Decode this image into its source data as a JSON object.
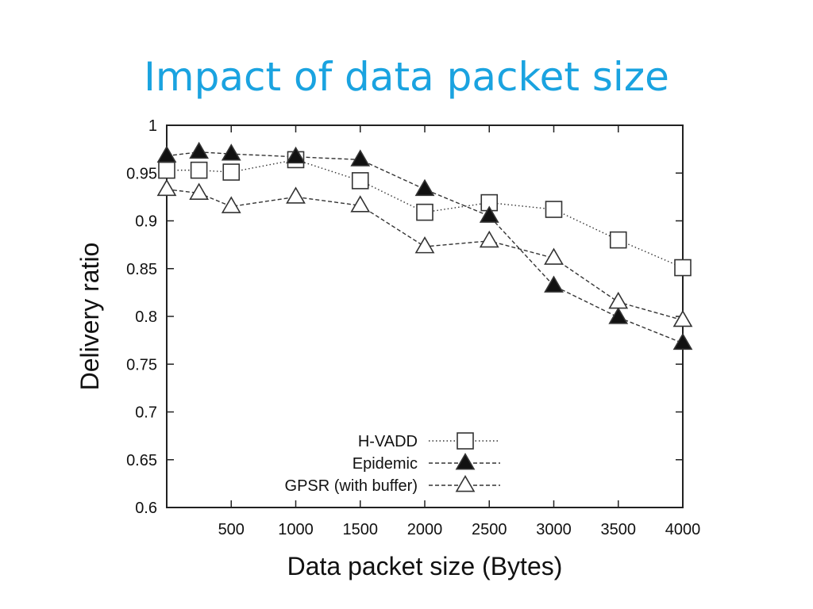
{
  "slide": {
    "title": "Impact of data packet size"
  },
  "chart_data": {
    "type": "line",
    "title": "",
    "xlabel": "Data packet size (Bytes)",
    "ylabel": "Delivery ratio",
    "xlim": [
      0,
      4000
    ],
    "ylim": [
      0.6,
      1
    ],
    "xticks": [
      500,
      1000,
      1500,
      2000,
      2500,
      3000,
      3500,
      4000
    ],
    "yticks": [
      0.6,
      0.65,
      0.7,
      0.75,
      0.8,
      0.85,
      0.9,
      0.95,
      1
    ],
    "ytick_labels": [
      "0.6",
      "0.65",
      "0.7",
      "0.75",
      "0.8",
      "0.85",
      "0.9",
      "0.95",
      "1"
    ],
    "grid": false,
    "legend_position": "bottom-center",
    "series": [
      {
        "name": "H-VADD",
        "marker": "open-square",
        "line": "dotted",
        "x": [
          0,
          250,
          500,
          1000,
          1500,
          2000,
          2500,
          3000,
          3500,
          4000
        ],
        "y": [
          0.953,
          0.953,
          0.951,
          0.964,
          0.942,
          0.909,
          0.919,
          0.912,
          0.88,
          0.851
        ]
      },
      {
        "name": "Epidemic",
        "marker": "filled-triangle",
        "line": "dashed",
        "x": [
          0,
          250,
          500,
          1000,
          1500,
          2000,
          2500,
          3000,
          3500,
          4000
        ],
        "y": [
          0.968,
          0.972,
          0.97,
          0.967,
          0.964,
          0.933,
          0.905,
          0.832,
          0.799,
          0.772
        ]
      },
      {
        "name": "GPSR (with buffer)",
        "marker": "open-triangle",
        "line": "dashed",
        "x": [
          0,
          250,
          500,
          1000,
          1500,
          2000,
          2500,
          3000,
          3500,
          4000
        ],
        "y": [
          0.933,
          0.929,
          0.915,
          0.925,
          0.916,
          0.873,
          0.879,
          0.861,
          0.815,
          0.796
        ]
      }
    ]
  }
}
